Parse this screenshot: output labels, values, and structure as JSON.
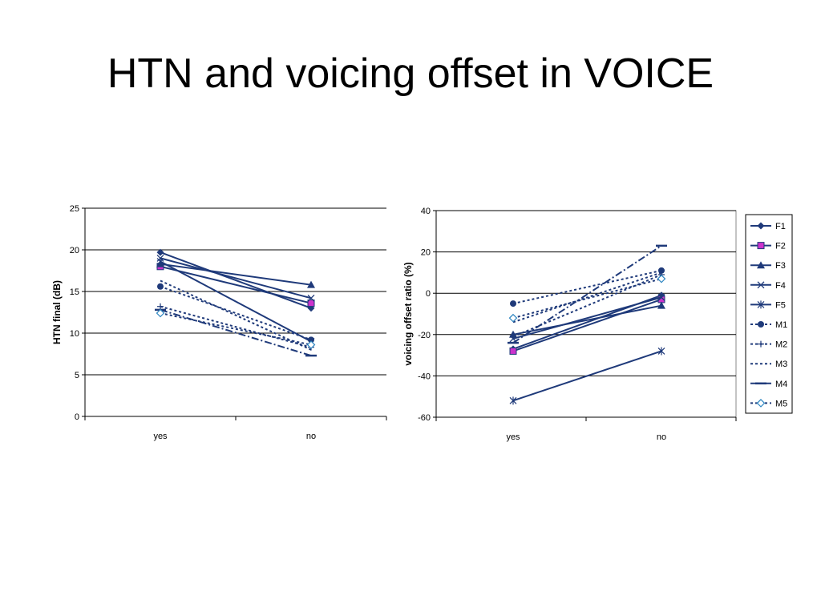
{
  "slide": {
    "title": "HTN and voicing offset in VOICE"
  },
  "colors": {
    "series": "#1F3A7A",
    "f2_marker": "#CC33CC",
    "grid": "#000000"
  },
  "chart_data": [
    {
      "type": "line",
      "categories": [
        "yes",
        "no"
      ],
      "ylabel": "HTN final (dB)",
      "ylim": [
        0,
        25
      ],
      "yticks": [
        0,
        5,
        10,
        15,
        20,
        25
      ],
      "grid": true,
      "legend": "none",
      "series": [
        {
          "values": [
            19.7,
            13.0
          ],
          "line": "solid",
          "marker": "diamond"
        },
        {
          "values": [
            18.0,
            13.6
          ],
          "line": "solid",
          "marker": "square"
        },
        {
          "values": [
            18.3,
            15.8
          ],
          "line": "solid",
          "marker": "triangle"
        },
        {
          "values": [
            19.0,
            14.2
          ],
          "line": "solid",
          "marker": "x"
        },
        {
          "values": [
            18.6,
            9.0
          ],
          "line": "solid",
          "marker": "star"
        },
        {
          "values": [
            15.6,
            9.2
          ],
          "line": "dotted",
          "marker": "circle"
        },
        {
          "values": [
            13.2,
            8.3
          ],
          "line": "dotted",
          "marker": "plus"
        },
        {
          "values": [
            16.3,
            8.0
          ],
          "line": "dotted",
          "marker": "none"
        },
        {
          "values": [
            12.8,
            7.3
          ],
          "line": "dashdot",
          "marker": "dash"
        },
        {
          "values": [
            12.4,
            8.6
          ],
          "line": "dotted",
          "marker": "open-diamond"
        }
      ]
    },
    {
      "type": "line",
      "categories": [
        "yes",
        "no"
      ],
      "ylabel": "voicing offset ratio (%)",
      "ylim": [
        -60,
        40
      ],
      "yticks": [
        -60,
        -40,
        -20,
        0,
        20,
        40
      ],
      "grid": true,
      "legend": "right",
      "series": [
        {
          "name": "F1",
          "values": [
            -27,
            -1
          ],
          "line": "solid",
          "marker": "diamond"
        },
        {
          "name": "F2",
          "values": [
            -28,
            -3
          ],
          "line": "solid",
          "marker": "square"
        },
        {
          "name": "F3",
          "values": [
            -20,
            -6
          ],
          "line": "solid",
          "marker": "triangle"
        },
        {
          "name": "F4",
          "values": [
            -22,
            -2
          ],
          "line": "solid",
          "marker": "x"
        },
        {
          "name": "F5",
          "values": [
            -52,
            -28
          ],
          "line": "solid",
          "marker": "star"
        },
        {
          "name": "M1",
          "values": [
            -5,
            11
          ],
          "line": "dotted",
          "marker": "circle"
        },
        {
          "name": "M2",
          "values": [
            -21,
            9
          ],
          "line": "dotted",
          "marker": "plus"
        },
        {
          "name": "M3",
          "values": [
            -14,
            10
          ],
          "line": "dotted",
          "marker": "none"
        },
        {
          "name": "M4",
          "values": [
            -24,
            23
          ],
          "line": "dashdot",
          "marker": "dash"
        },
        {
          "name": "M5",
          "values": [
            -12,
            7
          ],
          "line": "dotted",
          "marker": "open-diamond"
        }
      ]
    }
  ]
}
